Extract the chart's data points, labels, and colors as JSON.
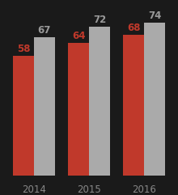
{
  "years": [
    "2014",
    "2015",
    "2016"
  ],
  "red_values": [
    58,
    64,
    68
  ],
  "gray_values": [
    67,
    72,
    74
  ],
  "red_color": "#c0392b",
  "gray_color": "#aaaaaa",
  "background_color": "#1a1a1a",
  "label_color_red": "#c0392b",
  "label_color_gray": "#999999",
  "year_label_color": "#888888",
  "bar_width": 0.38,
  "ylim": [
    0,
    82
  ],
  "label_fontsize": 8.5,
  "year_fontsize": 8.5
}
